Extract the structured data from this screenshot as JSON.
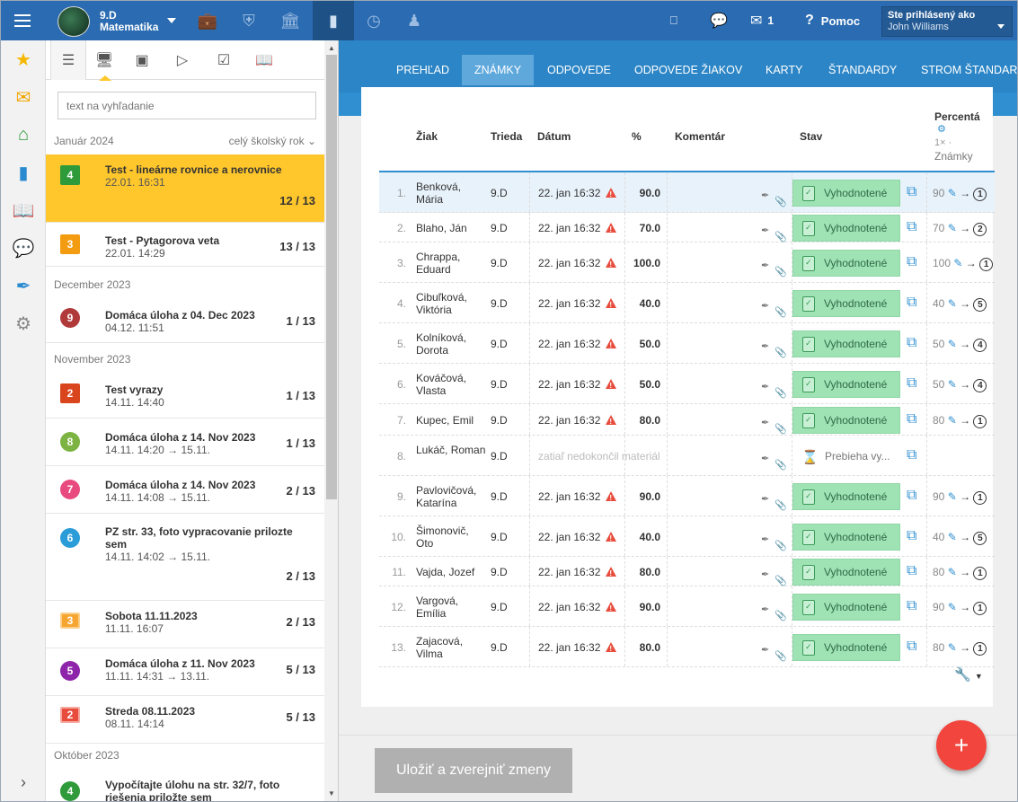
{
  "topbar": {
    "class_name": "9.D",
    "subject": "Matematika",
    "help_label": "Pomoc",
    "messages_count": "1",
    "user_label": "Ste prihlásený ako",
    "user_name": "John Williams"
  },
  "panel": {
    "search_placeholder": "text na vyhľadanie",
    "year_filter": "celý školský rok",
    "groups": [
      {
        "month": "Január 2024"
      },
      {
        "month": "December 2023"
      },
      {
        "month": "November 2023"
      },
      {
        "month": "Október 2023"
      }
    ],
    "items": [
      {
        "badge": "4",
        "badge_color": "#2e9a3a",
        "title": "Test - lineárne rovnice a nerovnice",
        "date": "22.01. 16:31",
        "count": "12 / 13"
      },
      {
        "badge": "3",
        "badge_color": "#f39c12",
        "title": "Test - Pytagorova veta",
        "date": "22.01. 14:29",
        "count": "13 / 13"
      },
      {
        "badge": "9",
        "badge_color": "#b03a3a",
        "title": "Domáca úloha z 04. Dec 2023",
        "date": "04.12. 11:51",
        "count": "1 / 13"
      },
      {
        "badge": "2",
        "badge_color": "#d9461e",
        "title": "Test vyrazy",
        "date": "14.11. 14:40",
        "count": "1 / 13"
      },
      {
        "badge": "8",
        "badge_color": "#7cb342",
        "title": "Domáca úloha z 14. Nov 2023",
        "date": "14.11. 14:20 → 15.11.",
        "count": "1 / 13"
      },
      {
        "badge": "7",
        "badge_color": "#e84a7f",
        "title": "Domáca úloha z 14. Nov 2023",
        "date": "14.11. 14:08 → 15.11.",
        "count": "2 / 13"
      },
      {
        "badge": "6",
        "badge_color": "#2a9cd8",
        "title": "PZ str. 33, foto vypracovanie prilozte sem",
        "date": "14.11. 14:02 → 15.11.",
        "count": "2 / 13"
      },
      {
        "badge": "3",
        "badge_color": "#f7a531",
        "title": "Sobota 11.11.2023",
        "date": "11.11. 16:07",
        "count": "2 / 13"
      },
      {
        "badge": "5",
        "badge_color": "#8e24aa",
        "title": "Domáca úloha z 11. Nov 2023",
        "date": "11.11. 14:31 → 13.11.",
        "count": "5 / 13"
      },
      {
        "badge": "2",
        "badge_color": "#e74c3c",
        "title": "Streda 08.11.2023",
        "date": "08.11. 14:14",
        "count": "5 / 13"
      },
      {
        "badge": "4",
        "badge_color": "#2e9a3a",
        "title": "Vypočítajte úlohu na str. 32/7, foto riešenia priložte sem",
        "date": "",
        "count": ""
      }
    ]
  },
  "nav": {
    "tabs": [
      "PREHĽAD",
      "ZNÁMKY",
      "ODPOVEDE",
      "ODPOVEDE ŽIAKOV",
      "KARTY",
      "ŠTANDARDY",
      "STROM ŠTANDARD"
    ]
  },
  "table": {
    "headers": {
      "student": "Žiak",
      "class": "Trieda",
      "date": "Dátum",
      "percent": "%",
      "comment": "Komentár",
      "status": "Stav",
      "grade_title": "Percentá",
      "grade_sub1": "1×",
      "grade_sub2": "Známky"
    },
    "rows": [
      {
        "n": "1.",
        "name": "Benková, Mária",
        "cls": "9.D",
        "date": "22. jan 16:32",
        "pct": "90.0",
        "status": "Vyhodnotené",
        "pts": "90",
        "grade": "1"
      },
      {
        "n": "2.",
        "name": "Blaho, Ján",
        "cls": "9.D",
        "date": "22. jan 16:32",
        "pct": "70.0",
        "status": "Vyhodnotené",
        "pts": "70",
        "grade": "2"
      },
      {
        "n": "3.",
        "name": "Chrappa, Eduard",
        "cls": "9.D",
        "date": "22. jan 16:32",
        "pct": "100.0",
        "status": "Vyhodnotené",
        "pts": "100",
        "grade": "1"
      },
      {
        "n": "4.",
        "name": "Cibuľková, Viktória",
        "cls": "9.D",
        "date": "22. jan 16:32",
        "pct": "40.0",
        "status": "Vyhodnotené",
        "pts": "40",
        "grade": "5"
      },
      {
        "n": "5.",
        "name": "Kolníková, Dorota",
        "cls": "9.D",
        "date": "22. jan 16:32",
        "pct": "50.0",
        "status": "Vyhodnotené",
        "pts": "50",
        "grade": "4"
      },
      {
        "n": "6.",
        "name": "Kováčová, Vlasta",
        "cls": "9.D",
        "date": "22. jan 16:32",
        "pct": "50.0",
        "status": "Vyhodnotené",
        "pts": "50",
        "grade": "4"
      },
      {
        "n": "7.",
        "name": "Kupec, Emil",
        "cls": "9.D",
        "date": "22. jan 16:32",
        "pct": "80.0",
        "status": "Vyhodnotené",
        "pts": "80",
        "grade": "1"
      },
      {
        "n": "8.",
        "name": "Lukáč, Roman",
        "cls": "9.D",
        "date": "zatiaľ nedokončil materiál",
        "pct": "",
        "status": "Prebieha vy...",
        "pts": "",
        "grade": ""
      },
      {
        "n": "9.",
        "name": "Pavlovičová, Katarína",
        "cls": "9.D",
        "date": "22. jan 16:32",
        "pct": "90.0",
        "status": "Vyhodnotené",
        "pts": "90",
        "grade": "1"
      },
      {
        "n": "10.",
        "name": "Šimonovič, Oto",
        "cls": "9.D",
        "date": "22. jan 16:32",
        "pct": "40.0",
        "status": "Vyhodnotené",
        "pts": "40",
        "grade": "5"
      },
      {
        "n": "11.",
        "name": "Vajda, Jozef",
        "cls": "9.D",
        "date": "22. jan 16:32",
        "pct": "80.0",
        "status": "Vyhodnotené",
        "pts": "80",
        "grade": "1"
      },
      {
        "n": "12.",
        "name": "Vargová, Emília",
        "cls": "9.D",
        "date": "22. jan 16:32",
        "pct": "90.0",
        "status": "Vyhodnotené",
        "pts": "90",
        "grade": "1"
      },
      {
        "n": "13.",
        "name": "Zajacová, Vilma",
        "cls": "9.D",
        "date": "22. jan 16:32",
        "pct": "80.0",
        "status": "Vyhodnotené",
        "pts": "80",
        "grade": "1"
      }
    ]
  },
  "footer": {
    "save_label": "Uložiť a zverejniť zmeny"
  },
  "fab": {
    "label": "+"
  }
}
